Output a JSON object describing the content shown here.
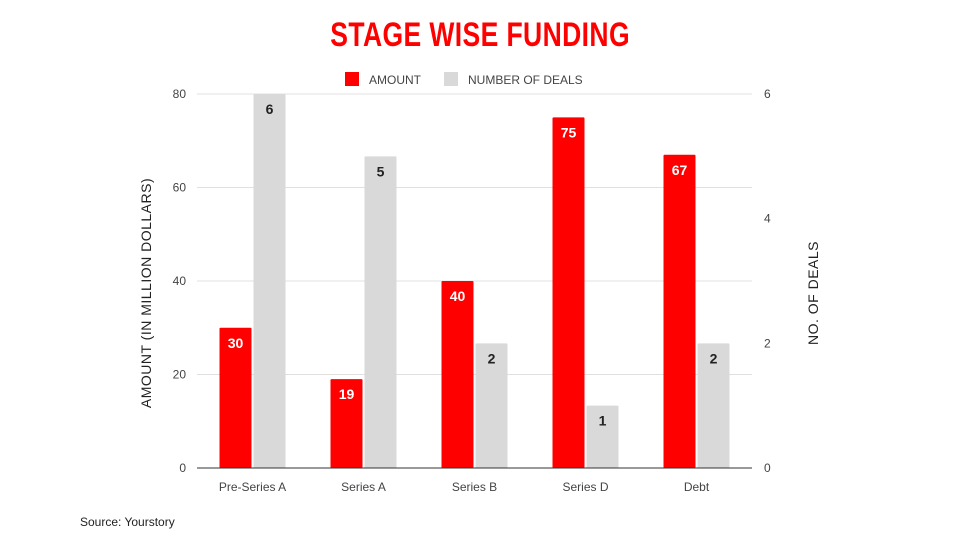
{
  "title": "STAGE WISE FUNDING",
  "source": "Source: Yourstory",
  "chart_data": {
    "type": "bar",
    "title": "STAGE WISE FUNDING",
    "categories": [
      "Pre-Series A",
      "Series A",
      "Series B",
      "Series D",
      "Debt"
    ],
    "series": [
      {
        "name": "AMOUNT",
        "axis": "left",
        "color": "#ff0000",
        "values": [
          30,
          19,
          40,
          75,
          67
        ]
      },
      {
        "name": "NUMBER OF DEALS",
        "axis": "right",
        "color": "#d9d9d9",
        "values": [
          6,
          5,
          2,
          1,
          2
        ]
      }
    ],
    "ylabel": "AMOUNT (IN MILLION DOLLARS)",
    "y2label": "NO. OF DEALS",
    "ylim": [
      0,
      80
    ],
    "y2lim": [
      0,
      6
    ],
    "yticks": [
      0,
      20,
      40,
      60,
      80
    ],
    "y2ticks": [
      0,
      2,
      4,
      6
    ],
    "grid": true,
    "legend": "top-center"
  }
}
